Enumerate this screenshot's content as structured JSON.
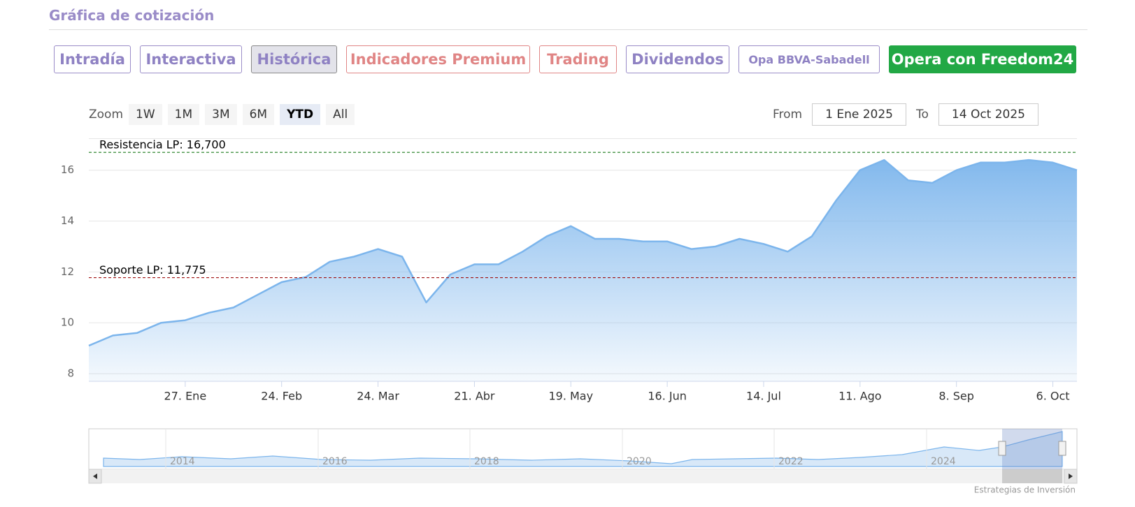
{
  "header": {
    "title": "Gráfica de cotización"
  },
  "tabs": [
    {
      "label": "Intradía",
      "style": "default"
    },
    {
      "label": "Interactiva",
      "style": "default"
    },
    {
      "label": "Histórica",
      "style": "active"
    },
    {
      "label": "Indicadores Premium",
      "style": "premium"
    },
    {
      "label": "Trading",
      "style": "premium"
    },
    {
      "label": "Dividendos",
      "style": "default"
    },
    {
      "label": "Opa BBVA-Sabadell",
      "style": "small"
    },
    {
      "label": "Opera con Freedom24",
      "style": "cta"
    }
  ],
  "zoom": {
    "label": "Zoom",
    "buttons": [
      "1W",
      "1M",
      "3M",
      "6M",
      "YTD",
      "All"
    ],
    "active": 4
  },
  "range": {
    "from_label": "From",
    "from": "1 Ene 2025",
    "to_label": "To",
    "to": "14 Oct 2025"
  },
  "navigator": {
    "labels": [
      "2014",
      "2016",
      "2018",
      "2020",
      "2022",
      "2024"
    ]
  },
  "credit": "Estrategias de Inversión",
  "chart_data": {
    "type": "area",
    "categories": [
      null,
      null,
      null,
      null,
      "27. Ene",
      null,
      null,
      null,
      "24. Feb",
      null,
      null,
      null,
      "24. Mar",
      null,
      null,
      null,
      "21. Abr",
      null,
      null,
      null,
      "19. May",
      null,
      null,
      null,
      "16. Jun",
      null,
      null,
      null,
      "14. Jul",
      null,
      null,
      null,
      "11. Ago",
      null,
      null,
      null,
      "8. Sep",
      null,
      null,
      null,
      "6. Oct",
      null
    ],
    "values": [
      9.1,
      9.5,
      9.6,
      10.0,
      10.1,
      10.4,
      10.6,
      11.1,
      11.6,
      11.8,
      12.4,
      12.6,
      12.9,
      12.6,
      10.8,
      11.9,
      12.3,
      12.3,
      12.8,
      13.4,
      13.8,
      13.3,
      13.3,
      13.2,
      13.2,
      12.9,
      13.0,
      13.3,
      13.1,
      12.8,
      13.4,
      14.8,
      16.0,
      16.4,
      15.6,
      15.5,
      16.0,
      16.3,
      16.3,
      16.4,
      16.3,
      16.0
    ],
    "color": "#7cb5ec",
    "ylim": [
      7.7,
      17.2
    ],
    "yticks": [
      8,
      10,
      12,
      14,
      16
    ],
    "grid": true,
    "plot_lines": [
      {
        "value": 16.7,
        "label": "Resistencia LP: 16,700",
        "color": "#1e7b1e"
      },
      {
        "value": 11.775,
        "label": "Soporte LP: 11,775",
        "color": "#a01010"
      }
    ]
  }
}
